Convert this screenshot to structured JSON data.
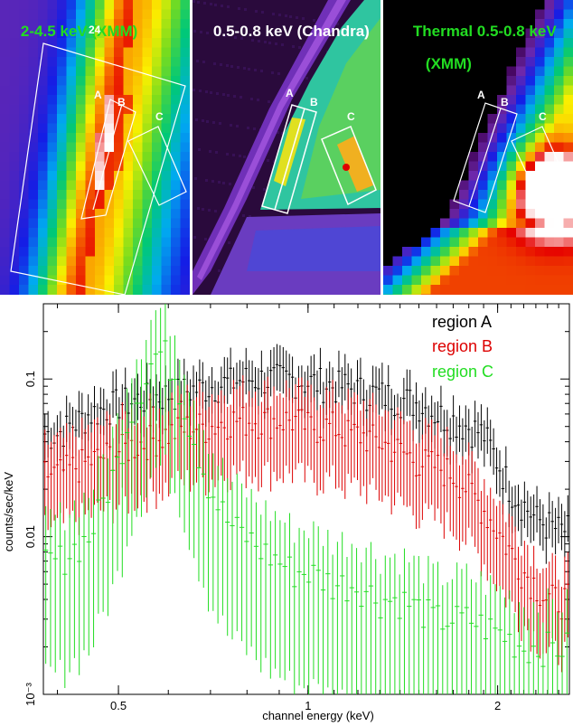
{
  "panels": [
    {
      "title_line1": "2-4.5 keV (XMM)",
      "title_line2": "",
      "color": "#22dd22",
      "marker": "24",
      "labels": [
        "A",
        "B",
        "C"
      ],
      "cmap": "rainbow"
    },
    {
      "title_line1": "0.5-0.8 keV (Chandra)",
      "title_line2": "",
      "color": "#ffffff",
      "labels": [
        "A",
        "B",
        "C"
      ],
      "cmap": "rainbow"
    },
    {
      "title_line1": "Thermal 0.5-0.8 keV",
      "title_line2": "(XMM)",
      "color": "#22dd22",
      "labels": [
        "A",
        "B",
        "C"
      ],
      "cmap": "rainbow"
    }
  ],
  "chart_data": {
    "type": "scatter",
    "xlabel": "channel energy (keV)",
    "ylabel": "counts/sec/keV",
    "x_scale": "log",
    "y_scale": "log",
    "xlim": [
      0.38,
      2.6
    ],
    "ylim": [
      0.001,
      0.3
    ],
    "x_tick_labels": [
      "0.5",
      "1",
      "2"
    ],
    "x_ticks": [
      0.5,
      1,
      2
    ],
    "y_tick_labels": [
      "10⁻³",
      "0.01",
      "0.1"
    ],
    "y_ticks": [
      0.001,
      0.01,
      0.1
    ],
    "legend_position": "top-right",
    "series": [
      {
        "name": "region A",
        "color": "#000000",
        "x": [
          0.4,
          0.45,
          0.5,
          0.55,
          0.6,
          0.65,
          0.7,
          0.75,
          0.8,
          0.85,
          0.9,
          0.95,
          1.0,
          1.05,
          1.1,
          1.15,
          1.2,
          1.3,
          1.4,
          1.5,
          1.6,
          1.7,
          1.8,
          1.9,
          2.0,
          2.1,
          2.2,
          2.3,
          2.4,
          2.5
        ],
        "y": [
          0.045,
          0.06,
          0.07,
          0.075,
          0.08,
          0.085,
          0.09,
          0.095,
          0.1,
          0.1,
          0.1,
          0.1,
          0.095,
          0.095,
          0.09,
          0.09,
          0.085,
          0.08,
          0.075,
          0.07,
          0.06,
          0.055,
          0.05,
          0.045,
          0.03,
          0.02,
          0.016,
          0.013,
          0.012,
          0.011
        ]
      },
      {
        "name": "region B",
        "color": "#dd0000",
        "x": [
          0.4,
          0.45,
          0.5,
          0.55,
          0.6,
          0.65,
          0.7,
          0.75,
          0.8,
          0.85,
          0.9,
          0.95,
          1.0,
          1.05,
          1.1,
          1.15,
          1.2,
          1.3,
          1.4,
          1.5,
          1.6,
          1.7,
          1.8,
          1.9,
          2.0,
          2.1,
          2.2,
          2.3,
          2.4,
          2.5
        ],
        "y": [
          0.025,
          0.03,
          0.035,
          0.04,
          0.045,
          0.05,
          0.05,
          0.055,
          0.055,
          0.055,
          0.055,
          0.055,
          0.05,
          0.05,
          0.05,
          0.045,
          0.045,
          0.04,
          0.035,
          0.03,
          0.028,
          0.025,
          0.02,
          0.015,
          0.011,
          0.008,
          0.006,
          0.005,
          0.004,
          0.004
        ]
      },
      {
        "name": "region C",
        "color": "#22dd22",
        "x": [
          0.4,
          0.45,
          0.5,
          0.52,
          0.55,
          0.57,
          0.59,
          0.62,
          0.65,
          0.7,
          0.75,
          0.8,
          0.85,
          0.9,
          0.95,
          1.0,
          1.1,
          1.2,
          1.3,
          1.4,
          1.5,
          1.6,
          1.8,
          2.0,
          2.2,
          2.4
        ],
        "y": [
          0.007,
          0.01,
          0.03,
          0.06,
          0.1,
          0.14,
          0.15,
          0.1,
          0.05,
          0.02,
          0.012,
          0.01,
          0.008,
          0.007,
          0.006,
          0.006,
          0.005,
          0.005,
          0.004,
          0.004,
          0.0035,
          0.003,
          0.003,
          0.0025,
          0.002,
          0.002
        ]
      }
    ]
  }
}
